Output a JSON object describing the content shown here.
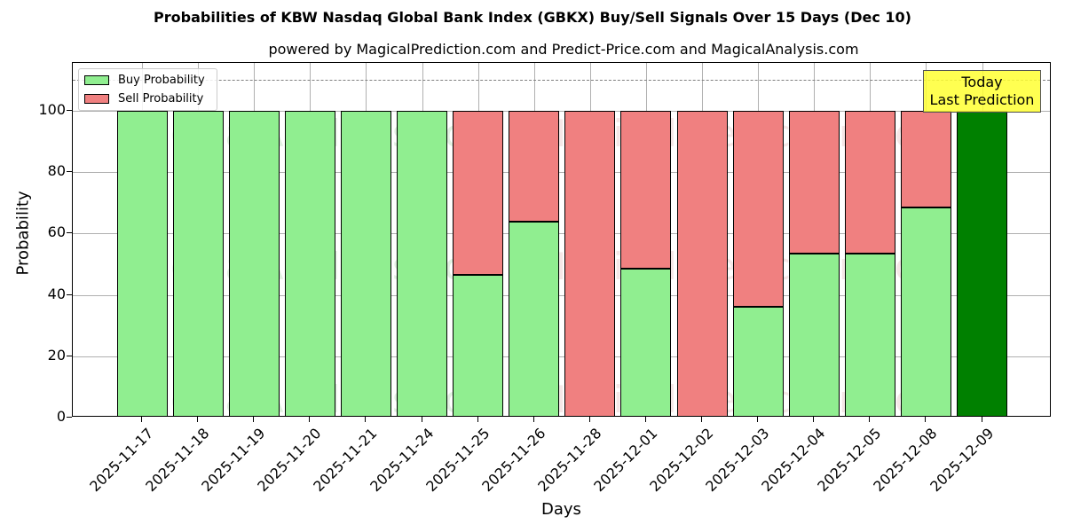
{
  "header": {
    "title": "Probabilities of KBW Nasdaq Global Bank Index (GBKX) Buy/Sell Signals Over 15 Days (Dec 10)",
    "subtitle": "powered by MagicalPrediction.com and Predict-Price.com and MagicalAnalysis.com"
  },
  "legend": {
    "buy_label": "Buy Probability",
    "sell_label": "Sell Probability"
  },
  "annotation": {
    "line1": "Today",
    "line2": "Last Prediction"
  },
  "axes": {
    "xlabel": "Days",
    "ylabel": "Probability",
    "yticks": [
      "0",
      "20",
      "40",
      "60",
      "80",
      "100"
    ]
  },
  "watermarks": [
    "MagicalAnalysis.com",
    "MagicalPrediction.com"
  ],
  "colors": {
    "buy": "#90ee90",
    "sell": "#f08080",
    "today": "#008000",
    "annotation_bg": "#ffff44",
    "refline": "#808080"
  },
  "chart_data": {
    "type": "bar",
    "stacked": true,
    "title": "Probabilities of KBW Nasdaq Global Bank Index (GBKX) Buy/Sell Signals Over 15 Days (Dec 10)",
    "subtitle": "powered by MagicalPrediction.com and Predict-Price.com and MagicalAnalysis.com",
    "xlabel": "Days",
    "ylabel": "Probability",
    "ylim": [
      0,
      115
    ],
    "grid": true,
    "legend_position": "upper left",
    "reference_line": 110,
    "categories": [
      "2025-11-17",
      "2025-11-18",
      "2025-11-19",
      "2025-11-20",
      "2025-11-21",
      "2025-11-24",
      "2025-11-25",
      "2025-11-26",
      "2025-11-28",
      "2025-12-01",
      "2025-12-02",
      "2025-12-03",
      "2025-12-04",
      "2025-12-05",
      "2025-12-08",
      "2025-12-09"
    ],
    "series": [
      {
        "name": "Buy Probability",
        "values": [
          100,
          100,
          100,
          100,
          100,
          100,
          46.5,
          63.9,
          0,
          48.6,
          0,
          36.1,
          53.6,
          53.6,
          68.5,
          100
        ]
      },
      {
        "name": "Sell Probability",
        "values": [
          0,
          0,
          0,
          0,
          0,
          0,
          53.5,
          36.1,
          100,
          51.4,
          100,
          63.9,
          46.4,
          46.4,
          31.5,
          0
        ]
      }
    ],
    "annotations": [
      {
        "text": "Today\nLast Prediction",
        "x": "2025-12-09"
      }
    ]
  }
}
